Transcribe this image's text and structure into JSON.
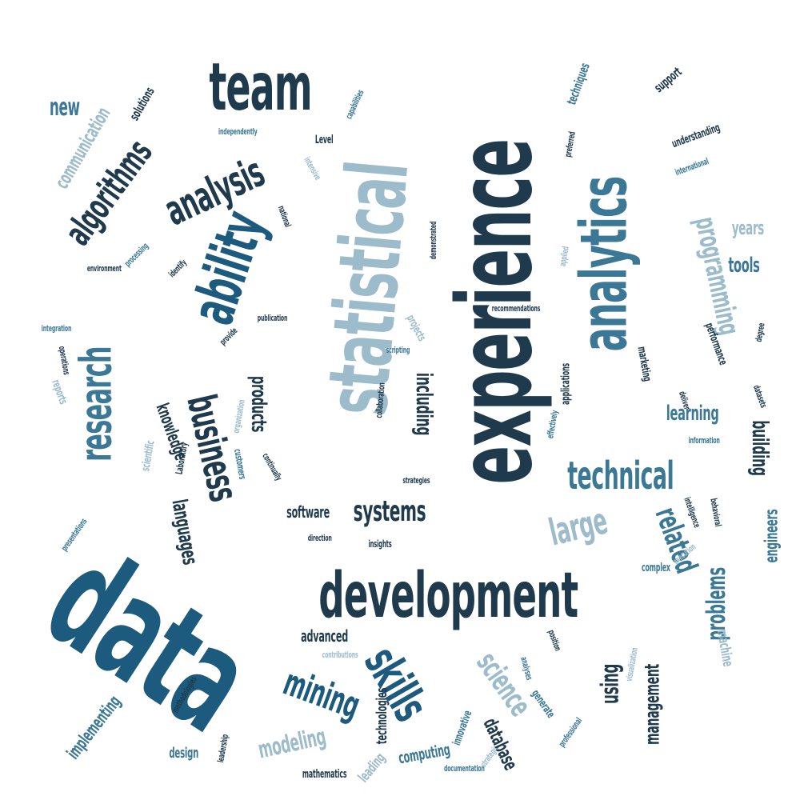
{
  "palette": {
    "navy": "#1f3a4c",
    "blue": "#1c5a7e",
    "teal": "#3b7896",
    "light": "#9dbccb",
    "pale": "#bcd3de",
    "background": "#ffffff"
  },
  "words": [
    {
      "text": "data",
      "color": "blue"
    },
    {
      "text": "experience",
      "color": "navy"
    },
    {
      "text": "statistical",
      "color": "light"
    },
    {
      "text": "development",
      "color": "navy"
    },
    {
      "text": "analytics",
      "color": "teal"
    },
    {
      "text": "team",
      "color": "navy"
    },
    {
      "text": "ability",
      "color": "blue"
    },
    {
      "text": "analysis",
      "color": "navy"
    },
    {
      "text": "research",
      "color": "teal"
    },
    {
      "text": "skills",
      "color": "blue"
    },
    {
      "text": "business",
      "color": "navy"
    },
    {
      "text": "technical",
      "color": "teal"
    },
    {
      "text": "programming",
      "color": "light"
    },
    {
      "text": "algorithms",
      "color": "navy"
    },
    {
      "text": "large",
      "color": "light"
    },
    {
      "text": "mining",
      "color": "blue"
    },
    {
      "text": "science",
      "color": "light"
    },
    {
      "text": "systems",
      "color": "navy"
    },
    {
      "text": "related",
      "color": "teal"
    },
    {
      "text": "including",
      "color": "navy"
    },
    {
      "text": "using",
      "color": "navy"
    },
    {
      "text": "building",
      "color": "navy"
    },
    {
      "text": "problems",
      "color": "teal"
    },
    {
      "text": "languages",
      "color": "navy"
    },
    {
      "text": "products",
      "color": "navy"
    },
    {
      "text": "modeling",
      "color": "light"
    },
    {
      "text": "management",
      "color": "navy"
    },
    {
      "text": "communication",
      "color": "light"
    },
    {
      "text": "new",
      "color": "teal"
    },
    {
      "text": "learning",
      "color": "teal"
    },
    {
      "text": "tools",
      "color": "teal"
    },
    {
      "text": "years",
      "color": "light"
    },
    {
      "text": "implementing",
      "color": "teal"
    },
    {
      "text": "database",
      "color": "navy"
    },
    {
      "text": "knowledge",
      "color": "navy"
    },
    {
      "text": "technologies",
      "color": "navy"
    },
    {
      "text": "engineers",
      "color": "teal"
    },
    {
      "text": "software",
      "color": "navy"
    },
    {
      "text": "advanced",
      "color": "navy"
    },
    {
      "text": "machine",
      "color": "light"
    },
    {
      "text": "computing",
      "color": "teal"
    },
    {
      "text": "design",
      "color": "teal"
    },
    {
      "text": "leading",
      "color": "light"
    },
    {
      "text": "solutions",
      "color": "navy"
    },
    {
      "text": "support",
      "color": "navy"
    },
    {
      "text": "techniques",
      "color": "teal"
    },
    {
      "text": "understanding",
      "color": "navy"
    },
    {
      "text": "performance",
      "color": "navy"
    },
    {
      "text": "applications",
      "color": "navy"
    },
    {
      "text": "marketing",
      "color": "navy"
    },
    {
      "text": "complex",
      "color": "teal"
    },
    {
      "text": "innovative",
      "color": "teal"
    },
    {
      "text": "generate",
      "color": "teal"
    },
    {
      "text": "Level",
      "color": "navy"
    },
    {
      "text": "projects",
      "color": "light"
    },
    {
      "text": "preferred",
      "color": "navy"
    },
    {
      "text": "demonstrated",
      "color": "navy"
    },
    {
      "text": "applied",
      "color": "light"
    },
    {
      "text": "recommendations",
      "color": "navy"
    },
    {
      "text": "degree",
      "color": "navy"
    },
    {
      "text": "deliver",
      "color": "navy"
    },
    {
      "text": "datasets",
      "color": "navy"
    },
    {
      "text": "information",
      "color": "teal"
    },
    {
      "text": "intelligence",
      "color": "navy"
    },
    {
      "text": "behavioral",
      "color": "navy"
    },
    {
      "text": "execution",
      "color": "light"
    },
    {
      "text": "visualization",
      "color": "light"
    },
    {
      "text": "position",
      "color": "navy"
    },
    {
      "text": "analyses",
      "color": "teal"
    },
    {
      "text": "professional",
      "color": "teal"
    },
    {
      "text": "strategic",
      "color": "light"
    },
    {
      "text": "documentation",
      "color": "teal"
    },
    {
      "text": "mathematics",
      "color": "navy"
    },
    {
      "text": "leadership",
      "color": "navy"
    },
    {
      "text": "methodologies",
      "color": "navy"
    },
    {
      "text": "contributions",
      "color": "light"
    },
    {
      "text": "presentations",
      "color": "teal"
    },
    {
      "text": "scientific",
      "color": "light"
    },
    {
      "text": "reports",
      "color": "light"
    },
    {
      "text": "operations",
      "color": "navy"
    },
    {
      "text": "integration",
      "color": "teal"
    },
    {
      "text": "provide",
      "color": "navy"
    },
    {
      "text": "publication",
      "color": "navy"
    },
    {
      "text": "environment",
      "color": "navy"
    },
    {
      "text": "processing",
      "color": "teal"
    },
    {
      "text": "identify",
      "color": "navy"
    },
    {
      "text": "national",
      "color": "navy"
    },
    {
      "text": "intensive",
      "color": "light"
    },
    {
      "text": "independently",
      "color": "teal"
    },
    {
      "text": "capabilities",
      "color": "teal"
    },
    {
      "text": "international",
      "color": "teal"
    },
    {
      "text": "customers",
      "color": "teal"
    },
    {
      "text": "Laboratory",
      "color": "navy"
    },
    {
      "text": "continually",
      "color": "navy"
    },
    {
      "text": "organization",
      "color": "light"
    },
    {
      "text": "collaboration",
      "color": "navy"
    },
    {
      "text": "scripting",
      "color": "teal"
    },
    {
      "text": "effectively",
      "color": "teal"
    },
    {
      "text": "strategies",
      "color": "navy"
    },
    {
      "text": "direction",
      "color": "navy"
    },
    {
      "text": "insights",
      "color": "navy"
    }
  ]
}
